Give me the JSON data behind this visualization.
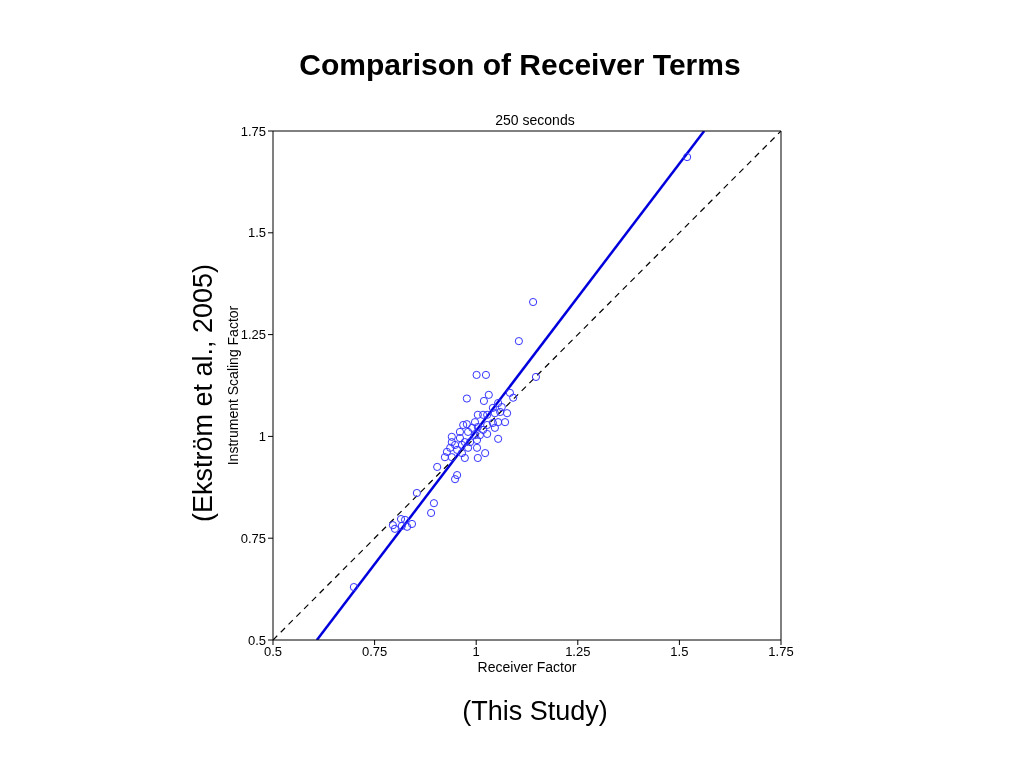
{
  "chart_data": {
    "type": "scatter",
    "title": "Comparison of Receiver Terms",
    "subtitle": "250 seconds",
    "xlabel": "Receiver Factor",
    "ylabel": "Instrument Scaling Factor",
    "annotations": [
      "(Ekström et al., 2005)",
      "(This Study)"
    ],
    "xlim": [
      0.5,
      1.75
    ],
    "ylim": [
      0.5,
      1.75
    ],
    "xticks": [
      0.5,
      0.75,
      1,
      1.25,
      1.5,
      1.75
    ],
    "yticks": [
      0.5,
      0.75,
      1,
      1.25,
      1.5,
      1.75
    ],
    "grid": false,
    "legend": false,
    "series": [
      {
        "color": "#3333ff",
        "marker": "circle",
        "x": [
          1.519,
          1.14,
          1.105,
          1.147,
          1.001,
          1.024,
          0.977,
          1.031,
          1.019,
          1.083,
          1.091,
          1.054,
          1.063,
          1.041,
          1.004,
          1.017,
          1.027,
          1.046,
          1.059,
          1.076,
          0.997,
          0.968,
          0.977,
          0.99,
          1.004,
          1.027,
          1.041,
          1.054,
          1.071,
          1.046,
          1.017,
          0.96,
          0.98,
          0.997,
          1.009,
          1.027,
          0.94,
          0.96,
          0.972,
          0.985,
          1.002,
          1.054,
          0.94,
          0.948,
          0.965,
          0.98,
          1.002,
          0.936,
          0.928,
          0.953,
          0.965,
          0.923,
          0.94,
          0.972,
          1.004,
          1.022,
          0.904,
          0.953,
          0.948,
          0.699,
          0.854,
          0.896,
          0.889,
          0.795,
          0.815,
          0.825,
          0.842,
          0.8,
          0.817,
          0.83
        ],
        "values": [
          1.686,
          1.33,
          1.234,
          1.146,
          1.151,
          1.151,
          1.093,
          1.102,
          1.087,
          1.107,
          1.095,
          1.082,
          1.072,
          1.07,
          1.053,
          1.053,
          1.053,
          1.057,
          1.06,
          1.057,
          1.035,
          1.028,
          1.03,
          1.021,
          1.023,
          1.028,
          1.033,
          1.035,
          1.035,
          1.021,
          1.016,
          1.011,
          1.011,
          1.003,
          1.003,
          1.006,
          0.999,
          0.996,
          0.986,
          0.986,
          0.991,
          0.994,
          0.986,
          0.979,
          0.979,
          0.972,
          0.972,
          0.972,
          0.962,
          0.967,
          0.959,
          0.949,
          0.949,
          0.947,
          0.947,
          0.959,
          0.925,
          0.905,
          0.895,
          0.63,
          0.861,
          0.836,
          0.812,
          0.782,
          0.797,
          0.795,
          0.785,
          0.773,
          0.78,
          0.778
        ]
      },
      {
        "type": "line",
        "color": "#0000dd",
        "marker": "none",
        "line_style": "solid",
        "x": [
          0.608,
          1.561
        ],
        "values": [
          0.5,
          1.75
        ]
      },
      {
        "type": "line",
        "color": "#000000",
        "marker": "none",
        "line_style": "dashed",
        "x": [
          0.5,
          1.75
        ],
        "values": [
          0.5,
          1.75
        ]
      }
    ]
  }
}
